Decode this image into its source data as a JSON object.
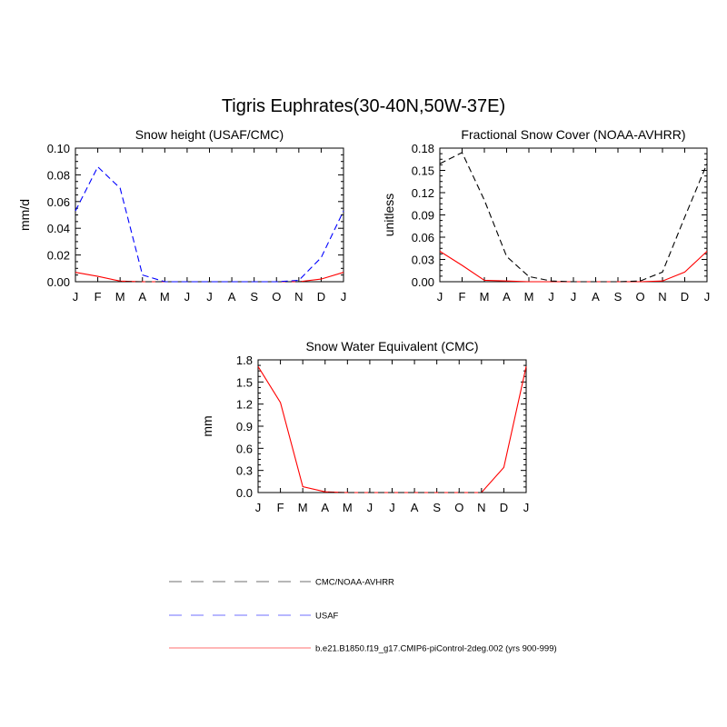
{
  "figure": {
    "title": "Tigris Euphrates(30-40N,50W-37E)"
  },
  "colors": {
    "cmc": "#000000",
    "usaf": "#0000ff",
    "model": "#ff0000"
  },
  "chart_data": [
    {
      "type": "line",
      "title": "Snow height (USAF/CMC)",
      "xlabel": "",
      "ylabel": "mm/d",
      "categories": [
        "J",
        "F",
        "M",
        "A",
        "M",
        "J",
        "J",
        "A",
        "S",
        "O",
        "N",
        "D",
        "J"
      ],
      "ylim": [
        0,
        0.1
      ],
      "yticks": [
        "0.00",
        "0.02",
        "0.04",
        "0.06",
        "0.08",
        "0.10"
      ],
      "series": [
        {
          "key": "cmc",
          "style": "dashed",
          "values": [
            0,
            0,
            0,
            0,
            0,
            0,
            0,
            0,
            0,
            0,
            0,
            0,
            0
          ]
        },
        {
          "key": "usaf",
          "style": "dashed",
          "values": [
            0.053,
            0.086,
            0.07,
            0.005,
            0,
            0,
            0,
            0,
            0,
            0,
            0.001,
            0.018,
            0.053
          ]
        },
        {
          "key": "model",
          "style": "solid",
          "values": [
            0.007,
            0.004,
            0.0005,
            0,
            0,
            0,
            0,
            0,
            0,
            0,
            0,
            0.002,
            0.007
          ]
        }
      ]
    },
    {
      "type": "line",
      "title": "Fractional Snow Cover (NOAA-AVHRR)",
      "xlabel": "",
      "ylabel": "unitless",
      "categories": [
        "J",
        "F",
        "M",
        "A",
        "M",
        "J",
        "J",
        "A",
        "S",
        "O",
        "N",
        "D",
        "J"
      ],
      "ylim": [
        0,
        0.18
      ],
      "yticks": [
        "0.00",
        "0.03",
        "0.06",
        "0.09",
        "0.12",
        "0.15",
        "0.18"
      ],
      "series": [
        {
          "key": "cmc",
          "style": "dashed",
          "values": [
            0.159,
            0.174,
            0.11,
            0.034,
            0.007,
            0.001,
            0,
            0,
            0,
            0.001,
            0.013,
            0.087,
            0.159
          ]
        },
        {
          "key": "model",
          "style": "solid",
          "values": [
            0.041,
            0.022,
            0.002,
            0.001,
            0,
            0,
            0,
            0,
            0,
            0,
            0.001,
            0.013,
            0.041
          ]
        }
      ]
    },
    {
      "type": "line",
      "title": "Snow Water Equivalent (CMC)",
      "xlabel": "",
      "ylabel": "mm",
      "categories": [
        "J",
        "F",
        "M",
        "A",
        "M",
        "J",
        "J",
        "A",
        "S",
        "O",
        "N",
        "D",
        "J"
      ],
      "ylim": [
        0,
        1.8
      ],
      "yticks": [
        "0.0",
        "0.3",
        "0.6",
        "0.9",
        "1.2",
        "1.5",
        "1.8"
      ],
      "series": [
        {
          "key": "cmc",
          "style": "dashed",
          "values": [
            0,
            0,
            0,
            0,
            0,
            0,
            0,
            0,
            0,
            0,
            0,
            0,
            0
          ]
        },
        {
          "key": "model",
          "style": "solid",
          "values": [
            1.71,
            1.22,
            0.08,
            0.01,
            0,
            0,
            0,
            0,
            0,
            0,
            0,
            0.34,
            1.71
          ]
        }
      ]
    }
  ],
  "legend": {
    "placement": "bottom-center",
    "items": [
      {
        "key": "cmc",
        "style": "dashed",
        "label": "CMC/NOAA-AVHRR"
      },
      {
        "key": "usaf",
        "style": "dashed",
        "label": "USAF"
      },
      {
        "key": "model",
        "style": "solid",
        "label": "b.e21.B1850.f19_g17.CMIP6-piControl-2deg.002 (yrs 900-999)"
      }
    ]
  }
}
